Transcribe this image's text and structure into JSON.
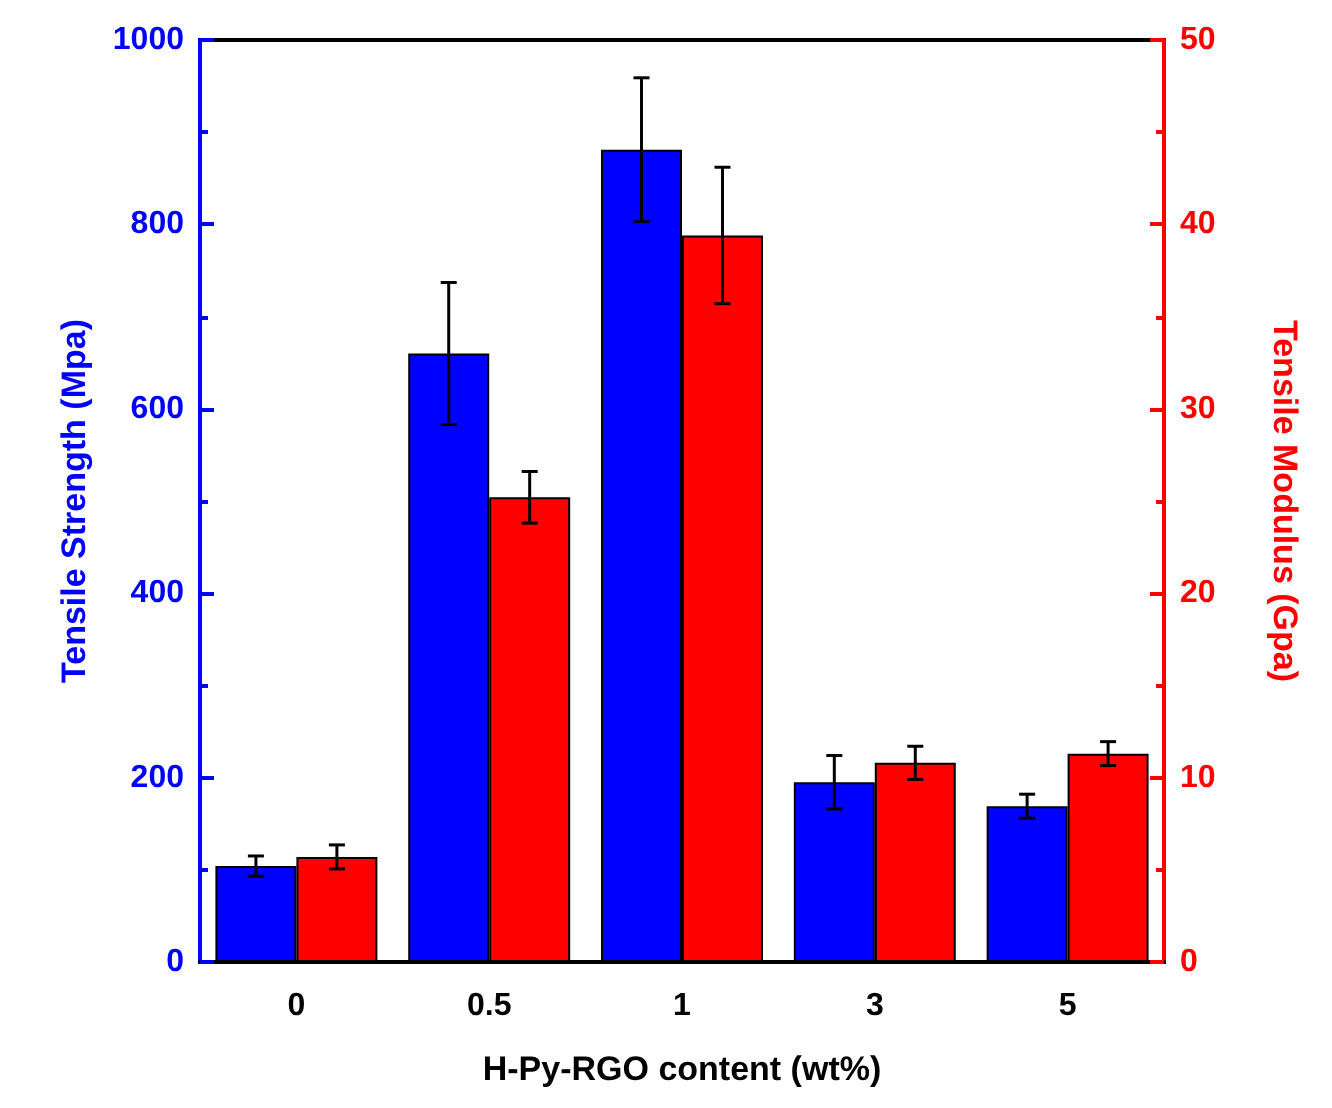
{
  "chart_data": {
    "type": "bar",
    "xlabel": "H-Py-RGO content (wt%)",
    "ylabel": "Tensile Strength (Mpa)",
    "y2label": "Tensile Modulus (Gpa)",
    "categories": [
      "0",
      "0.5",
      "1",
      "3",
      "5"
    ],
    "series": [
      {
        "color": "#0000ff",
        "values": [
          104,
          660,
          881,
          195,
          169
        ],
        "errors": [
          11,
          77,
          78,
          29,
          13
        ]
      },
      {
        "color": "#ff0000",
        "axis": "y2",
        "values": [
          5.7,
          25.2,
          39.4,
          10.8,
          11.3
        ],
        "errors": [
          0.65,
          1.4,
          3.7,
          0.9,
          0.65
        ]
      }
    ],
    "ylim": [
      0,
      1000
    ],
    "yticks": [
      0,
      200,
      400,
      600,
      800,
      1000
    ],
    "y2lim": [
      0,
      50
    ],
    "y2ticks": [
      0,
      10,
      20,
      30,
      40,
      50
    ],
    "grid": false
  }
}
